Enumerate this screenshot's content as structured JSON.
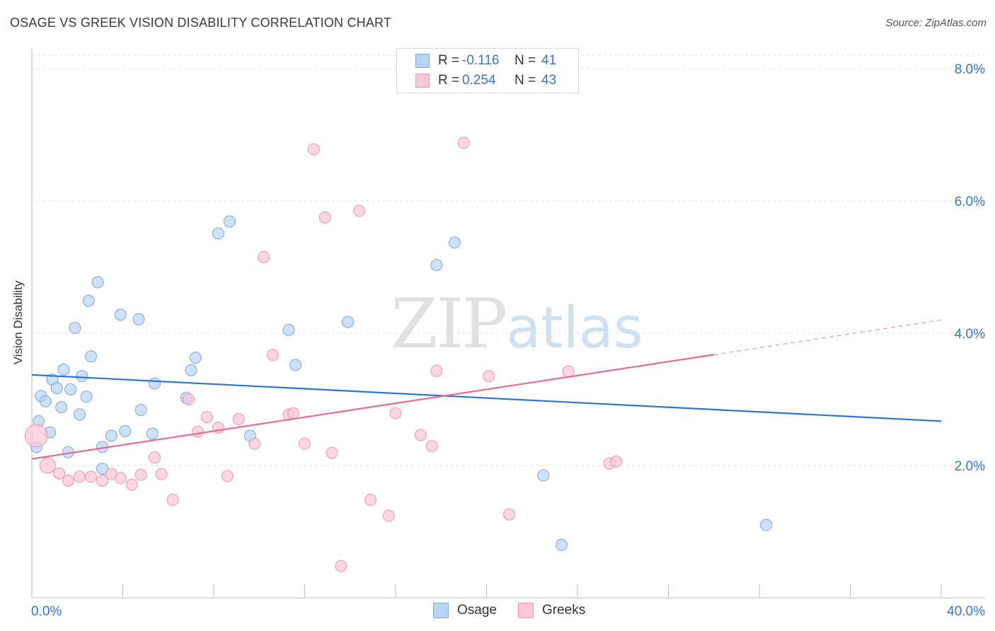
{
  "header": {
    "title": "OSAGE VS GREEK VISION DISABILITY CORRELATION CHART",
    "source": "Source: ZipAtlas.com"
  },
  "legend_top": {
    "rows": [
      {
        "r_label": "R =",
        "r_value": "-0.116",
        "n_label": "N =",
        "n_value": "41"
      },
      {
        "r_label": "R =",
        "r_value": "0.254",
        "n_label": "N =",
        "n_value": "43"
      }
    ]
  },
  "legend_bottom": [
    "Osage",
    "Greeks"
  ],
  "watermark": {
    "zip": "ZIP",
    "atlas": "atlas"
  },
  "colors": {
    "osage_fill": "#b9d4f3",
    "osage_stroke": "#7aa7dd",
    "osage_line": "#2e75d0",
    "greeks_fill": "#fbc6d5",
    "greeks_stroke": "#ee95b0",
    "greeks_line": "#e56b93",
    "tick_label": "#3b75c4"
  },
  "chart_data": {
    "type": "scatter",
    "title": "OSAGE VS GREEK VISION DISABILITY CORRELATION CHART",
    "xlabel": "",
    "ylabel": "Vision Disability",
    "xlim": [
      0,
      40
    ],
    "ylim": [
      0,
      8.2
    ],
    "x_tick_labels": [
      "0.0%",
      "40.0%"
    ],
    "y_ticks": [
      2,
      4,
      6,
      8
    ],
    "y_tick_labels": [
      "2.0%",
      "4.0%",
      "6.0%",
      "8.0%"
    ],
    "grid": true,
    "legend_position": "top-center",
    "series": [
      {
        "name": "Osage",
        "points": [
          [
            0.2,
            2.28
          ],
          [
            0.3,
            2.67
          ],
          [
            0.4,
            3.05
          ],
          [
            0.6,
            2.97
          ],
          [
            0.8,
            2.5
          ],
          [
            0.9,
            3.3
          ],
          [
            1.1,
            3.17
          ],
          [
            1.3,
            2.88
          ],
          [
            1.4,
            3.45
          ],
          [
            1.6,
            2.2
          ],
          [
            1.7,
            3.15
          ],
          [
            1.9,
            4.08
          ],
          [
            2.1,
            2.77
          ],
          [
            2.2,
            3.35
          ],
          [
            2.4,
            3.04
          ],
          [
            2.5,
            4.49
          ],
          [
            2.6,
            3.65
          ],
          [
            2.9,
            4.77
          ],
          [
            3.1,
            2.28
          ],
          [
            3.1,
            1.95
          ],
          [
            3.5,
            2.45
          ],
          [
            3.9,
            4.28
          ],
          [
            4.1,
            2.52
          ],
          [
            4.7,
            4.21
          ],
          [
            4.8,
            2.84
          ],
          [
            5.3,
            2.48
          ],
          [
            5.4,
            3.24
          ],
          [
            6.8,
            3.02
          ],
          [
            7.0,
            3.44
          ],
          [
            7.2,
            3.63
          ],
          [
            8.2,
            5.51
          ],
          [
            8.7,
            5.69
          ],
          [
            9.6,
            2.45
          ],
          [
            11.3,
            4.05
          ],
          [
            11.6,
            3.52
          ],
          [
            13.9,
            4.17
          ],
          [
            17.8,
            5.03
          ],
          [
            18.6,
            5.37
          ],
          [
            22.5,
            1.85
          ],
          [
            23.3,
            0.8
          ],
          [
            32.3,
            1.1
          ]
        ],
        "trend": {
          "x": [
            0,
            40
          ],
          "y": [
            3.37,
            2.67
          ],
          "solid_to": 40
        }
      },
      {
        "name": "Greeks",
        "points": [
          [
            0.2,
            2.45
          ],
          [
            0.7,
            2.0
          ],
          [
            1.2,
            1.88
          ],
          [
            1.6,
            1.77
          ],
          [
            2.1,
            1.83
          ],
          [
            2.6,
            1.83
          ],
          [
            3.1,
            1.77
          ],
          [
            3.5,
            1.87
          ],
          [
            3.9,
            1.81
          ],
          [
            4.4,
            1.71
          ],
          [
            4.8,
            1.86
          ],
          [
            5.4,
            2.12
          ],
          [
            5.7,
            1.87
          ],
          [
            6.2,
            1.48
          ],
          [
            6.9,
            3.0
          ],
          [
            7.3,
            2.51
          ],
          [
            7.7,
            2.73
          ],
          [
            8.2,
            2.57
          ],
          [
            8.6,
            1.84
          ],
          [
            9.1,
            2.7
          ],
          [
            9.8,
            2.33
          ],
          [
            10.2,
            5.15
          ],
          [
            10.6,
            3.67
          ],
          [
            11.3,
            2.77
          ],
          [
            11.5,
            2.79
          ],
          [
            12.0,
            2.33
          ],
          [
            12.4,
            6.78
          ],
          [
            12.9,
            5.75
          ],
          [
            13.2,
            2.19
          ],
          [
            13.6,
            0.48
          ],
          [
            14.4,
            5.85
          ],
          [
            14.9,
            1.48
          ],
          [
            15.7,
            1.24
          ],
          [
            16.0,
            2.79
          ],
          [
            17.1,
            2.46
          ],
          [
            17.6,
            2.29
          ],
          [
            17.8,
            3.43
          ],
          [
            19.0,
            6.88
          ],
          [
            20.1,
            3.35
          ],
          [
            21.0,
            1.26
          ],
          [
            23.6,
            3.42
          ],
          [
            25.4,
            2.03
          ],
          [
            25.7,
            2.06
          ]
        ],
        "trend": {
          "x": [
            0,
            40
          ],
          "y": [
            2.1,
            4.2
          ],
          "solid_to": 30
        }
      }
    ]
  }
}
